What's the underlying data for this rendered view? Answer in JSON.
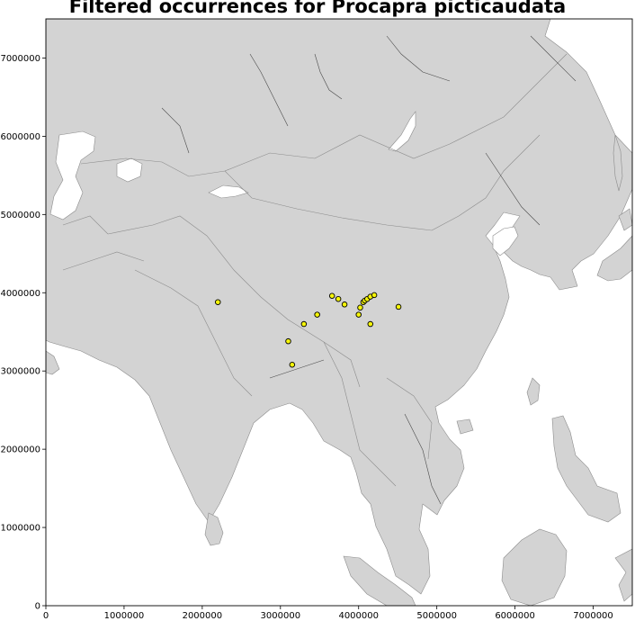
{
  "title": "Filtered occurrences for Procapra picticaudata",
  "chart_data": {
    "type": "scatter",
    "title": "Filtered occurrences for Procapra picticaudata",
    "xlim": [
      0,
      7500000
    ],
    "ylim": [
      0,
      7500000
    ],
    "x_ticks": [
      0,
      1000000,
      2000000,
      3000000,
      4000000,
      5000000,
      6000000,
      7000000
    ],
    "y_ticks": [
      0,
      1000000,
      2000000,
      3000000,
      4000000,
      5000000,
      6000000,
      7000000
    ],
    "x_tick_labels": [
      "0",
      "1000000",
      "2000000",
      "3000000",
      "4000000",
      "5000000",
      "6000000",
      "7000000"
    ],
    "y_tick_labels": [
      "0",
      "1000000",
      "2000000",
      "3000000",
      "4000000",
      "5000000",
      "6000000",
      "7000000"
    ],
    "grid": false,
    "colors": {
      "land": "#d3d3d3",
      "water": "#ffffff",
      "border": "#8c8c8c",
      "point_fill": "#f5f50a",
      "point_edge": "#000000"
    },
    "points": [
      {
        "x": 2200000,
        "y": 3880000
      },
      {
        "x": 3100000,
        "y": 3380000
      },
      {
        "x": 3150000,
        "y": 3080000
      },
      {
        "x": 3300000,
        "y": 3600000
      },
      {
        "x": 3470000,
        "y": 3720000
      },
      {
        "x": 3660000,
        "y": 3960000
      },
      {
        "x": 3740000,
        "y": 3920000
      },
      {
        "x": 3820000,
        "y": 3850000
      },
      {
        "x": 4000000,
        "y": 3720000
      },
      {
        "x": 4020000,
        "y": 3810000
      },
      {
        "x": 4060000,
        "y": 3880000
      },
      {
        "x": 4080000,
        "y": 3900000
      },
      {
        "x": 4110000,
        "y": 3920000
      },
      {
        "x": 4150000,
        "y": 3950000
      },
      {
        "x": 4200000,
        "y": 3970000
      },
      {
        "x": 4150000,
        "y": 3600000
      },
      {
        "x": 4510000,
        "y": 3820000
      }
    ]
  }
}
